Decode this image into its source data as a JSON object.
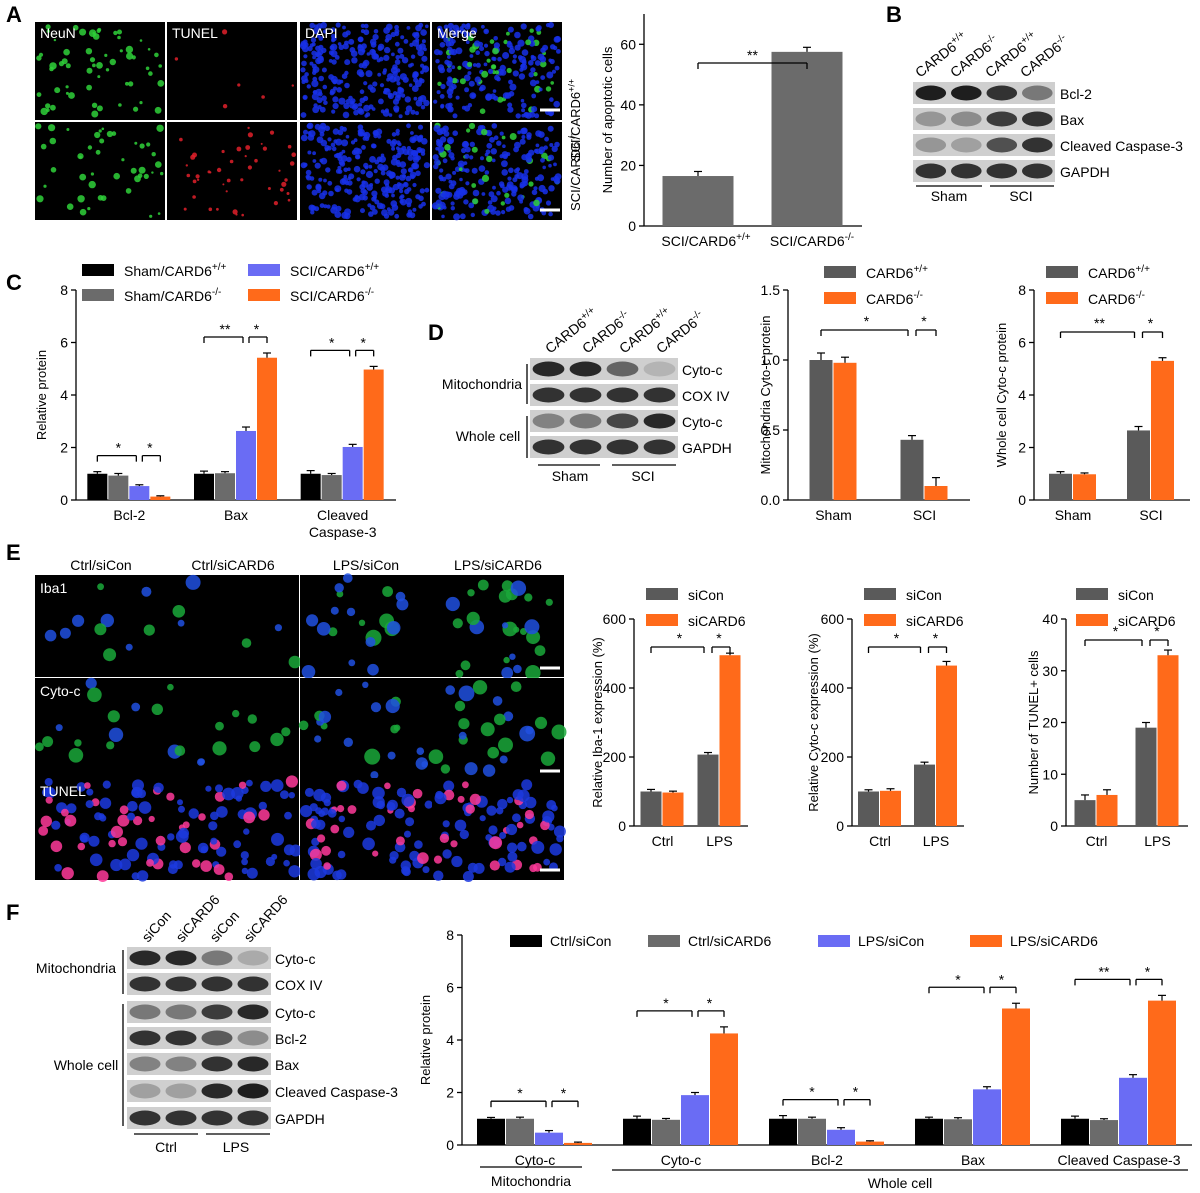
{
  "colors": {
    "black": "#000000",
    "gray": "#6b6b6b",
    "darkgray": "#5a5a5a",
    "blue": "#6a6cf4",
    "orange": "#ff6a1a",
    "micro_green": "#2fd13a",
    "micro_red": "#e0202a",
    "micro_blue": "#1830e8",
    "micro_magenta": "#ff3a9a"
  },
  "panel_letters": [
    "A",
    "B",
    "C",
    "D",
    "E",
    "F"
  ],
  "panelA": {
    "channels": [
      "NeuN",
      "TUNEL",
      "DAPI",
      "Merge"
    ],
    "row_labels": [
      "SCI/CARD6+/+",
      "SCI/CARD6-/-"
    ]
  },
  "panelB": {
    "lanes": [
      "CARD6+/+",
      "CARD6-/-",
      "CARD6+/+",
      "CARD6-/-"
    ],
    "bands": [
      "Bcl-2",
      "Bax",
      "Cleaved Caspase-3",
      "GAPDH"
    ],
    "groups": [
      "Sham",
      "SCI"
    ]
  },
  "panelD": {
    "lanes": [
      "CARD6+/+",
      "CARD6-/-",
      "CARD6+/+",
      "CARD6-/-"
    ],
    "bands": [
      "Cyto-c",
      "COX IV",
      "Cyto-c",
      "GAPDH"
    ],
    "sections": [
      "Mitochondria",
      "Whole cell"
    ],
    "groups": [
      "Sham",
      "SCI"
    ]
  },
  "panelE": {
    "conditions": [
      "Ctrl/siCon",
      "Ctrl/siCARD6",
      "LPS/siCon",
      "LPS/siCARD6"
    ],
    "rows": [
      "Iba1",
      "Cyto-c",
      "TUNEL"
    ]
  },
  "panelF": {
    "lanes": [
      "siCon",
      "siCARD6",
      "siCon",
      "siCARD6"
    ],
    "bands": [
      "Cyto-c",
      "COX IV",
      "Cyto-c",
      "Bcl-2",
      "Bax",
      "Cleaved Caspase-3",
      "GAPDH"
    ],
    "sections": [
      "Mitochondria",
      "Whole cell"
    ],
    "groups": [
      "Ctrl",
      "LPS"
    ]
  },
  "chart_data": [
    {
      "id": "A",
      "type": "bar",
      "categories": [
        "SCI/CARD6+/+",
        "SCI/CARD6-/-"
      ],
      "values": [
        16.5,
        57.5
      ],
      "errors": [
        1.5,
        1.5
      ],
      "ylabel": "Number of apoptotic cells",
      "ylim": [
        0,
        70
      ],
      "yticks": [
        0,
        20,
        40,
        60
      ],
      "significance": [
        {
          "label": "**",
          "pair": [
            0,
            1
          ]
        }
      ]
    },
    {
      "id": "C",
      "type": "bar",
      "categories": [
        "Bcl-2",
        "Bax",
        "Cleaved Caspase-3"
      ],
      "series": [
        {
          "name": "Sham/CARD6+/+",
          "values": [
            1.0,
            1.0,
            1.0
          ],
          "errors": [
            0.08,
            0.1,
            0.12
          ]
        },
        {
          "name": "Sham/CARD6-/-",
          "values": [
            0.93,
            1.02,
            0.95
          ],
          "errors": [
            0.08,
            0.06,
            0.06
          ]
        },
        {
          "name": "SCI/CARD6+/+",
          "values": [
            0.53,
            2.63,
            2.02
          ],
          "errors": [
            0.05,
            0.15,
            0.1
          ]
        },
        {
          "name": "SCI/CARD6-/-",
          "values": [
            0.13,
            5.42,
            4.97
          ],
          "errors": [
            0.03,
            0.18,
            0.12
          ]
        }
      ],
      "ylabel": "Relative protein",
      "ylim": [
        0,
        8
      ],
      "yticks": [
        0,
        2,
        4,
        6,
        8
      ],
      "significance": [
        {
          "group": 0,
          "labels": [
            "*",
            "*"
          ]
        },
        {
          "group": 1,
          "labels": [
            "**",
            "*"
          ]
        },
        {
          "group": 2,
          "labels": [
            "*",
            "*"
          ]
        }
      ]
    },
    {
      "id": "D1",
      "type": "bar",
      "categories": [
        "Sham",
        "SCI"
      ],
      "series": [
        {
          "name": "CARD6+/+",
          "values": [
            1.0,
            0.43
          ],
          "errors": [
            0.05,
            0.03
          ]
        },
        {
          "name": "CARD6-/-",
          "values": [
            0.98,
            0.1
          ],
          "errors": [
            0.04,
            0.06
          ]
        }
      ],
      "ylabel": "Mitochondria Cyto-c protein",
      "ylim": [
        0,
        1.5
      ],
      "yticks": [
        0.0,
        0.5,
        1.0,
        1.5
      ],
      "significance": [
        "*",
        "*"
      ]
    },
    {
      "id": "D2",
      "type": "bar",
      "categories": [
        "Sham",
        "SCI"
      ],
      "series": [
        {
          "name": "CARD6+/+",
          "values": [
            1.0,
            2.65
          ],
          "errors": [
            0.08,
            0.15
          ]
        },
        {
          "name": "CARD6-/-",
          "values": [
            0.98,
            5.3
          ],
          "errors": [
            0.05,
            0.12
          ]
        }
      ],
      "ylabel": "Whole cell Cyto-c protein",
      "ylim": [
        0,
        8
      ],
      "yticks": [
        0,
        2,
        4,
        6,
        8
      ],
      "significance": [
        "**",
        "*"
      ]
    },
    {
      "id": "E1",
      "type": "bar",
      "categories": [
        "Ctrl",
        "LPS"
      ],
      "series": [
        {
          "name": "siCon",
          "values": [
            100,
            207
          ],
          "errors": [
            6,
            6
          ]
        },
        {
          "name": "siCARD6",
          "values": [
            97,
            495
          ],
          "errors": [
            4,
            6
          ]
        }
      ],
      "ylabel": "Relative Iba-1 expression (%)",
      "ylim": [
        0,
        600
      ],
      "yticks": [
        0,
        200,
        400,
        600
      ],
      "significance": [
        "*",
        "*"
      ]
    },
    {
      "id": "E2",
      "type": "bar",
      "categories": [
        "Ctrl",
        "LPS"
      ],
      "series": [
        {
          "name": "siCon",
          "values": [
            100,
            178
          ],
          "errors": [
            5,
            7
          ]
        },
        {
          "name": "siCARD6",
          "values": [
            102,
            465
          ],
          "errors": [
            6,
            12
          ]
        }
      ],
      "ylabel": "Relative Cyto-c expression (%)",
      "ylim": [
        0,
        600
      ],
      "yticks": [
        0,
        200,
        400,
        600
      ],
      "significance": [
        "*",
        "*"
      ]
    },
    {
      "id": "E3",
      "type": "bar",
      "categories": [
        "Ctrl",
        "LPS"
      ],
      "series": [
        {
          "name": "siCon",
          "values": [
            5.0,
            19.0
          ],
          "errors": [
            1.0,
            1.0
          ]
        },
        {
          "name": "siCARD6",
          "values": [
            6.0,
            33.0
          ],
          "errors": [
            1.0,
            1.0
          ]
        }
      ],
      "ylabel": "Number of TUNEL+ cells",
      "ylim": [
        0,
        40
      ],
      "yticks": [
        0,
        10,
        20,
        30,
        40
      ],
      "significance": [
        "*",
        "*"
      ]
    },
    {
      "id": "F",
      "type": "bar",
      "categories": [
        "Cyto-c",
        "Cyto-c",
        "Bcl-2",
        "Bax",
        "Cleaved Caspase-3"
      ],
      "series": [
        {
          "name": "Ctrl/siCon",
          "values": [
            1.0,
            1.0,
            1.0,
            1.0,
            1.0
          ],
          "errors": [
            0.05,
            0.1,
            0.12,
            0.06,
            0.1
          ]
        },
        {
          "name": "Ctrl/siCARD6",
          "values": [
            1.0,
            0.96,
            1.0,
            0.98,
            0.95
          ],
          "errors": [
            0.06,
            0.05,
            0.06,
            0.06,
            0.05
          ]
        },
        {
          "name": "LPS/siCon",
          "values": [
            0.47,
            1.9,
            0.58,
            2.12,
            2.56
          ],
          "errors": [
            0.08,
            0.1,
            0.08,
            0.1,
            0.12
          ]
        },
        {
          "name": "LPS/siCARD6",
          "values": [
            0.08,
            4.25,
            0.13,
            5.2,
            5.5
          ],
          "errors": [
            0.03,
            0.25,
            0.03,
            0.2,
            0.2
          ]
        }
      ],
      "ylabel": "Relative protein",
      "ylim": [
        0,
        8
      ],
      "yticks": [
        0,
        2,
        4,
        6,
        8
      ],
      "group_labels": [
        "Mitochondria",
        "Whole cell"
      ],
      "significance": [
        {
          "group": 0,
          "labels": [
            "*",
            "*"
          ]
        },
        {
          "group": 1,
          "labels": [
            "*",
            "*"
          ]
        },
        {
          "group": 2,
          "labels": [
            "*",
            "*"
          ]
        },
        {
          "group": 3,
          "labels": [
            "*",
            "*"
          ]
        },
        {
          "group": 4,
          "labels": [
            "**",
            "*"
          ]
        }
      ]
    }
  ]
}
